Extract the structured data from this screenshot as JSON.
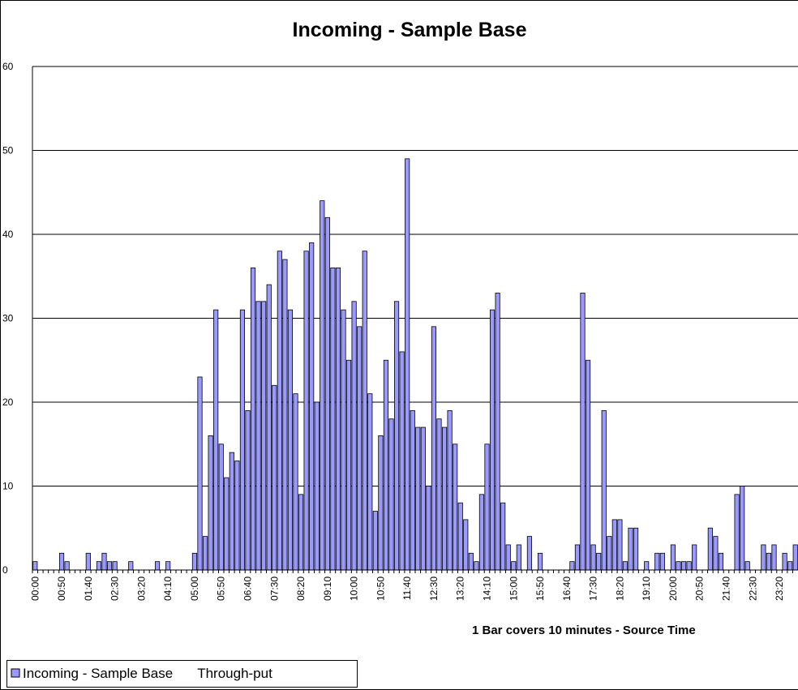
{
  "chart_data": {
    "type": "bar",
    "title": "Incoming - Sample Base",
    "x_label": "1 Bar covers 10 minutes - Source Time",
    "categories": [
      "00:00",
      null,
      null,
      null,
      null,
      "00:50",
      null,
      null,
      null,
      null,
      "01:40",
      null,
      null,
      null,
      null,
      "02:30",
      null,
      null,
      null,
      null,
      "03:20",
      null,
      null,
      null,
      null,
      "04:10",
      null,
      null,
      null,
      null,
      "05:00",
      null,
      null,
      null,
      null,
      "05:50",
      null,
      null,
      null,
      null,
      "06:40",
      null,
      null,
      null,
      null,
      "07:30",
      null,
      null,
      null,
      null,
      "08:20",
      null,
      null,
      null,
      null,
      "09:10",
      null,
      null,
      null,
      null,
      "10:00",
      null,
      null,
      null,
      null,
      "10:50",
      null,
      null,
      null,
      null,
      "11:40",
      null,
      null,
      null,
      null,
      "12:30",
      null,
      null,
      null,
      null,
      "13:20",
      null,
      null,
      null,
      null,
      "14:10",
      null,
      null,
      null,
      null,
      "15:00",
      null,
      null,
      null,
      null,
      "15:50",
      null,
      null,
      null,
      null,
      "16:40",
      null,
      null,
      null,
      null,
      "17:30",
      null,
      null,
      null,
      null,
      "18:20",
      null,
      null,
      null,
      null,
      "19:10",
      null,
      null,
      null,
      null,
      "20:00",
      null,
      null,
      null,
      null,
      "20:50",
      null,
      null,
      null,
      null,
      "21:40",
      null,
      null,
      null,
      null,
      "22:30",
      null,
      null,
      null,
      null,
      "23:20",
      null,
      null,
      null
    ],
    "series": [
      {
        "name": "Incoming - Sample Base",
        "color": "#9999ff",
        "values": [
          1,
          0,
          0,
          0,
          0,
          2,
          1,
          0,
          0,
          0,
          2,
          0,
          1,
          2,
          1,
          1,
          0,
          0,
          1,
          0,
          0,
          0,
          0,
          1,
          0,
          1,
          0,
          0,
          0,
          0,
          2,
          23,
          4,
          16,
          31,
          15,
          11,
          14,
          13,
          31,
          19,
          36,
          32,
          32,
          34,
          22,
          38,
          37,
          31,
          21,
          9,
          38,
          39,
          20,
          44,
          42,
          36,
          36,
          31,
          25,
          32,
          29,
          38,
          21,
          7,
          16,
          25,
          18,
          32,
          26,
          49,
          19,
          17,
          17,
          10,
          29,
          18,
          17,
          19,
          15,
          8,
          6,
          2,
          1,
          9,
          15,
          31,
          33,
          8,
          3,
          1,
          3,
          0,
          4,
          0,
          2,
          0,
          0,
          0,
          0,
          0,
          1,
          3,
          33,
          25,
          3,
          2,
          19,
          4,
          6,
          6,
          1,
          5,
          5,
          0,
          1,
          0,
          2,
          2,
          0,
          3,
          1,
          1,
          1,
          3,
          0,
          0,
          5,
          4,
          2,
          0,
          0,
          9,
          10,
          1,
          0,
          0,
          3,
          2,
          3,
          0,
          2,
          1,
          3
        ]
      },
      {
        "name": "Through-put",
        "values": [
          null,
          null,
          null,
          null,
          null,
          null,
          null,
          null,
          null,
          null,
          null,
          null,
          null,
          null,
          null,
          null,
          null,
          null,
          null,
          null,
          null,
          null,
          null,
          null,
          null,
          null,
          null,
          null,
          null,
          null,
          null,
          null,
          null,
          null,
          null,
          null,
          null,
          null,
          null,
          null,
          null,
          null,
          null,
          null,
          null,
          null,
          null,
          null,
          null,
          null,
          null,
          null,
          null,
          null,
          null,
          null,
          null,
          null,
          null,
          null,
          null,
          null,
          null,
          null,
          null,
          null,
          null,
          null,
          null,
          null,
          null,
          null,
          null,
          null,
          null,
          null,
          null,
          null,
          null,
          null,
          null,
          null,
          null,
          null,
          null,
          null,
          null,
          null,
          null,
          null,
          null,
          null,
          null,
          null,
          null,
          null,
          null,
          null,
          null,
          null,
          null,
          null,
          null,
          null,
          null,
          null,
          null,
          null,
          null,
          null,
          null,
          null,
          null,
          null,
          null,
          null,
          null,
          null,
          null,
          null,
          null,
          null,
          null,
          null,
          null,
          null,
          null,
          null,
          null,
          null,
          null,
          null,
          null,
          null,
          null,
          null,
          null,
          null,
          null,
          null,
          null,
          null,
          null,
          null
        ]
      }
    ],
    "ylim": [
      0,
      60
    ],
    "yticks": [
      0,
      10,
      20,
      30,
      40,
      50,
      60
    ],
    "grid": true
  }
}
